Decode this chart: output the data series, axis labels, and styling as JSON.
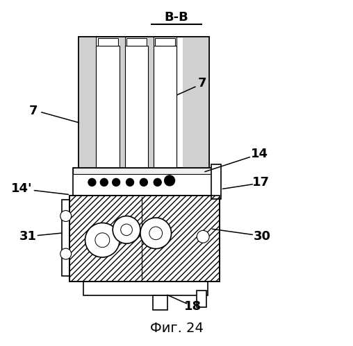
{
  "title": "В-В",
  "caption": "Фиг. 24",
  "bg_color": "#ffffff",
  "line_color": "#000000"
}
